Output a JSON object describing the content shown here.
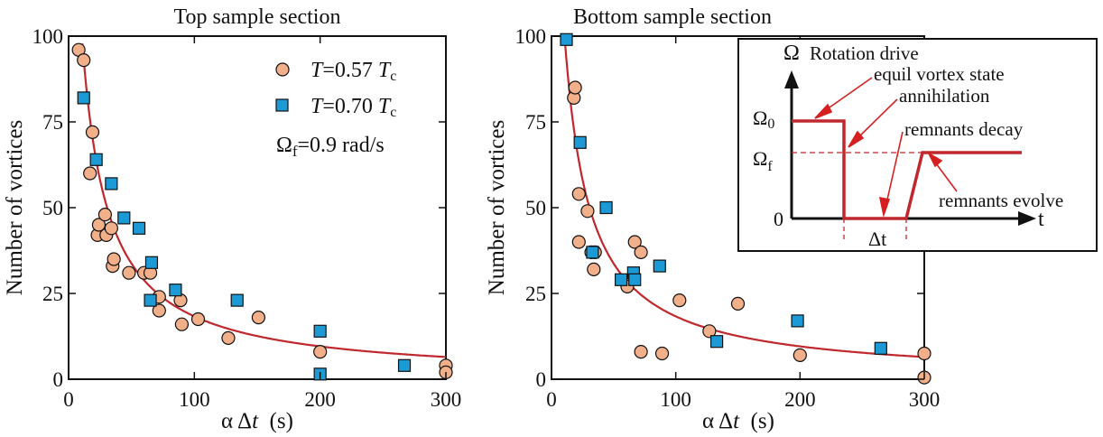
{
  "colors": {
    "fit_line": "#c0282d",
    "circle_fill": "#f2b08a",
    "square_fill": "#1c9ad6",
    "axis": "#111111",
    "inset_drive": "#c0282d",
    "inset_arrow": "#d62020"
  },
  "chart_data": [
    {
      "type": "scatter",
      "title": "Top sample section",
      "xlabel_parts": [
        "α Δ",
        "t",
        "  (s)"
      ],
      "ylabel": "Number of vortices",
      "xlim": [
        0,
        300
      ],
      "ylim": [
        0,
        100
      ],
      "xticks": [
        0,
        100,
        200,
        300
      ],
      "yticks": [
        0,
        25,
        50,
        75,
        100
      ],
      "grid": false,
      "legend_position": "top-right",
      "legend": [
        {
          "marker": "circle",
          "label": "T=0.57 Tc",
          "parts": [
            "T",
            "=0.57 ",
            "T",
            "c"
          ]
        },
        {
          "marker": "square",
          "label": "T=0.70 Tc",
          "parts": [
            "T",
            "=0.70 ",
            "T",
            "c"
          ]
        }
      ],
      "annotation": {
        "text": "Ωf=0.9 rad/s",
        "parts": [
          "Ω",
          "f",
          "=0.9 rad/s"
        ]
      },
      "series": [
        {
          "marker": "circle",
          "legend_label": "T=0.57 Tc",
          "points": [
            [
              8,
              96
            ],
            [
              12,
              93
            ],
            [
              17,
              60
            ],
            [
              19,
              72
            ],
            [
              23,
              42
            ],
            [
              24,
              45
            ],
            [
              29,
              48
            ],
            [
              30,
              42
            ],
            [
              34,
              44
            ],
            [
              35,
              33
            ],
            [
              36,
              35
            ],
            [
              48,
              31
            ],
            [
              60,
              31
            ],
            [
              65,
              31
            ],
            [
              72,
              20
            ],
            [
              72,
              24
            ],
            [
              89,
              23
            ],
            [
              90,
              16
            ],
            [
              103,
              17.5
            ],
            [
              127,
              12
            ],
            [
              151,
              18
            ],
            [
              200,
              8
            ],
            [
              300,
              4
            ],
            [
              300,
              2
            ]
          ]
        },
        {
          "marker": "square",
          "legend_label": "T=0.70 Tc",
          "points": [
            [
              12,
              82
            ],
            [
              22,
              64
            ],
            [
              34,
              57
            ],
            [
              44,
              47
            ],
            [
              56,
              44
            ],
            [
              65,
              23
            ],
            [
              66,
              34
            ],
            [
              85,
              26
            ],
            [
              134,
              23
            ],
            [
              200,
              14
            ],
            [
              200,
              1.5
            ],
            [
              267,
              4
            ]
          ]
        }
      ],
      "fit_curve": {
        "form": "a / (x + b)",
        "a": 2006,
        "b": 9.5
      }
    },
    {
      "type": "scatter",
      "title": "Bottom sample section",
      "xlabel_parts": [
        "α Δ",
        "t",
        "  (s)"
      ],
      "ylabel": "Number of vortices",
      "xlim": [
        0,
        300
      ],
      "ylim": [
        0,
        100
      ],
      "xticks": [
        0,
        100,
        200,
        300
      ],
      "yticks": [
        0,
        25,
        50,
        75,
        100
      ],
      "grid": false,
      "series": [
        {
          "marker": "circle",
          "legend_label": "T=0.57 Tc",
          "points": [
            [
              18,
              82
            ],
            [
              19,
              85
            ],
            [
              22,
              54
            ],
            [
              22,
              40
            ],
            [
              29,
              49
            ],
            [
              32,
              37
            ],
            [
              34,
              32
            ],
            [
              35,
              37
            ],
            [
              61,
              27
            ],
            [
              67,
              40
            ],
            [
              72,
              37
            ],
            [
              72,
              8
            ],
            [
              89,
              7.5
            ],
            [
              103,
              23
            ],
            [
              127,
              14
            ],
            [
              150,
              22
            ],
            [
              200,
              7
            ],
            [
              300,
              7.5
            ],
            [
              300,
              0.5
            ]
          ]
        },
        {
          "marker": "square",
          "legend_label": "T=0.70 Tc",
          "points": [
            [
              12,
              99
            ],
            [
              23,
              69
            ],
            [
              33,
              37
            ],
            [
              44,
              50
            ],
            [
              56,
              29
            ],
            [
              66,
              31
            ],
            [
              67,
              29
            ],
            [
              87,
              33
            ],
            [
              133,
              11
            ],
            [
              198,
              17
            ],
            [
              265,
              9
            ]
          ]
        }
      ],
      "fit_curve": {
        "form": "a / (x + b)",
        "a": 2006,
        "b": 9.5
      }
    }
  ],
  "inset": {
    "y_axis_label": "Ω",
    "x_axis_label": "t",
    "omega0_parts": [
      "Ω",
      "0"
    ],
    "omegaf_parts": [
      "Ω",
      "f"
    ],
    "zero_label": "0",
    "dt_label": "Δt",
    "annotations": {
      "rotation_drive": "Rotation drive",
      "equil_vortex_state": "equil vortex state",
      "annihilation": "annihilation",
      "remnants_decay": "remnants decay",
      "remnants_evolve": "remnants evolve"
    }
  }
}
